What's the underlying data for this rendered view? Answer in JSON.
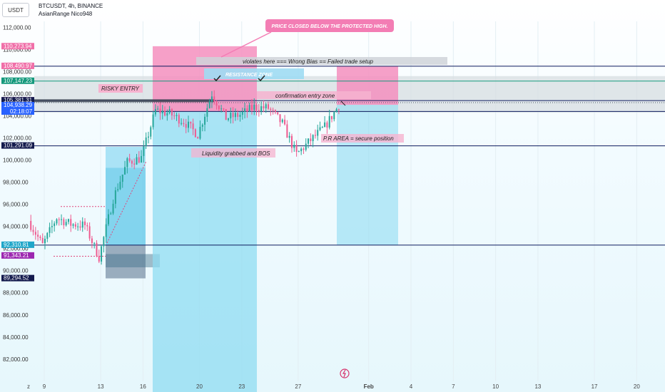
{
  "header": {
    "currency_button": "USDT",
    "symbol_title": "BTCUSDT, 4h, BINANCE",
    "indicator_title": "AsianRange Nico948"
  },
  "annotations": {
    "callout": "PRICE CLOSED BELOW THE PROTECTED HIGH.",
    "violates": "violates here  === Wrong Bias == Failed trade setup",
    "resistance": "RESISTANCE ZONE",
    "risky": "RISKY ENTRY",
    "confirmation": "confirmation entry zone",
    "liquidity": "Liquidity grabbed and BOS",
    "pr_area": "P.R AREA = secure position"
  },
  "price_badges": [
    {
      "value": 110273.94,
      "label": "110,273.94",
      "color": "#f06fa8"
    },
    {
      "value": 108490.97,
      "label": "108,490.97",
      "color": "#f06fa8"
    },
    {
      "value": 107147.23,
      "label": "107,147.23",
      "color": "#14997c"
    },
    {
      "value": 105383.6,
      "label": "105,383.60",
      "color": "#f06fa8"
    },
    {
      "value": 105381.31,
      "label": "105,381.31",
      "color": "#131a4d"
    },
    {
      "value": 104938.29,
      "label": "104,938.29",
      "sublabel": "02:18:07",
      "color": "#2962ff"
    },
    {
      "value": 101291.09,
      "label": "101,291.09",
      "color": "#131a4d"
    },
    {
      "value": 92310.81,
      "label": "92,310.81",
      "color": "#1fa6c9"
    },
    {
      "value": 91343.21,
      "label": "91,343.21",
      "color": "#9c27b0"
    },
    {
      "value": 89294.52,
      "label": "89,294.52",
      "color": "#131a4d"
    }
  ],
  "chart_data": {
    "type": "candlestick",
    "title": "BTCUSDT, 4h, BINANCE",
    "ylim": [
      80500,
      113500
    ],
    "y_ticks": [
      {
        "value": 112000,
        "label": "112,000.00"
      },
      {
        "value": 110000,
        "label": "110,000.00"
      },
      {
        "value": 108000,
        "label": "108,000.00"
      },
      {
        "value": 106000,
        "label": "106,000.00"
      },
      {
        "value": 104000,
        "label": "104,000.00"
      },
      {
        "value": 102000,
        "label": "102,000.00"
      },
      {
        "value": 100000,
        "label": "100,000.00"
      },
      {
        "value": 98000,
        "label": "98,000.00"
      },
      {
        "value": 96000,
        "label": "96,000.00"
      },
      {
        "value": 94000,
        "label": "94,000.00"
      },
      {
        "value": 92000,
        "label": "92,000.00"
      },
      {
        "value": 90000,
        "label": "90,000.00"
      },
      {
        "value": 88000,
        "label": "88,000.00"
      },
      {
        "value": 86000,
        "label": "86,000.00"
      },
      {
        "value": 84000,
        "label": "84,000.00"
      },
      {
        "value": 82000,
        "label": "82,000.00"
      }
    ],
    "x_ticks": [
      {
        "date": "Jan 9",
        "label": "9"
      },
      {
        "date": "Jan 13",
        "label": "13"
      },
      {
        "date": "Jan 16",
        "label": "16"
      },
      {
        "date": "Jan 20",
        "label": "20"
      },
      {
        "date": "Jan 23",
        "label": "23"
      },
      {
        "date": "Jan 27",
        "label": "27"
      },
      {
        "date": "Feb 1",
        "label": "Feb"
      },
      {
        "date": "Feb 4",
        "label": "4"
      },
      {
        "date": "Feb 7",
        "label": "7"
      },
      {
        "date": "Feb 10",
        "label": "10"
      },
      {
        "date": "Feb 13",
        "label": "13"
      },
      {
        "date": "Feb 17",
        "label": "17"
      },
      {
        "date": "Feb 20",
        "label": "20"
      }
    ],
    "horizontal_levels": [
      108490.97,
      107147.23,
      105381.31,
      104400,
      101291.09,
      92310.81
    ],
    "candles_close_path": [
      {
        "date": "Jan 8",
        "close": 94500
      },
      {
        "date": "Jan 9",
        "close": 92300
      },
      {
        "date": "Jan 10",
        "close": 94800
      },
      {
        "date": "Jan 11",
        "close": 94200
      },
      {
        "date": "Jan 12",
        "close": 94100
      },
      {
        "date": "Jan 13",
        "close": 91200
      },
      {
        "date": "Jan 14",
        "close": 96500
      },
      {
        "date": "Jan 15",
        "close": 99800
      },
      {
        "date": "Jan 16",
        "close": 100200
      },
      {
        "date": "Jan 17",
        "close": 104500
      },
      {
        "date": "Jan 18",
        "close": 104200
      },
      {
        "date": "Jan 19",
        "close": 103500
      },
      {
        "date": "Jan 20",
        "close": 102300
      },
      {
        "date": "Jan 21",
        "close": 106000
      },
      {
        "date": "Jan 22",
        "close": 103800
      },
      {
        "date": "Jan 23",
        "close": 104100
      },
      {
        "date": "Jan 24",
        "close": 104800
      },
      {
        "date": "Jan 25",
        "close": 104700
      },
      {
        "date": "Jan 26",
        "close": 103300
      },
      {
        "date": "Jan 27",
        "close": 100500
      },
      {
        "date": "Jan 28",
        "close": 101800
      },
      {
        "date": "Jan 29",
        "close": 103000
      },
      {
        "date": "Jan 30",
        "close": 104938.29
      }
    ]
  },
  "colors": {
    "bull": "#26a69a",
    "bear": "#ef5a8f",
    "pink_zone": "#f48fbe",
    "blue_zone": "#8fdcf2",
    "level_line": "#0d1b5e",
    "teal_line": "#14997c"
  }
}
